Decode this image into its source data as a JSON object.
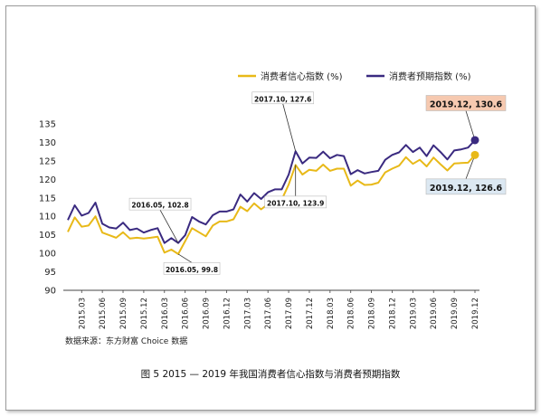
{
  "chart_data": {
    "type": "line",
    "title": "图 5 2015 — 2019 年我国消费者信心指数与消费者预期指数",
    "source": "数据来源：东方财富 Choice 数据",
    "xlabel": "",
    "ylabel": "",
    "ylim": [
      90,
      135
    ],
    "yticks": [
      90,
      95,
      100,
      105,
      110,
      115,
      120,
      125,
      130,
      135
    ],
    "grid": false,
    "legend_position": "top",
    "tick_labels": [
      "2015.03",
      "2015.06",
      "2015.09",
      "2015.12",
      "2016.03",
      "2016.06",
      "2016.09",
      "2016.12",
      "2017.03",
      "2017.06",
      "2017.09",
      "2017.12",
      "2018.03",
      "2018.06",
      "2018.09",
      "2018.12",
      "2019.03",
      "2019.06",
      "2019.09",
      "2019.12"
    ],
    "x_start": "2015.01",
    "x_end": "2019.12",
    "series": [
      {
        "name": "消费者信心指数 (%)",
        "color": "#e8b918",
        "values": [
          105.8,
          109.7,
          107.2,
          107.5,
          110.0,
          105.6,
          104.9,
          104.2,
          105.7,
          104.0,
          104.2,
          104.0,
          104.2,
          104.5,
          100.2,
          101.0,
          99.8,
          103.3,
          106.8,
          105.7,
          104.6,
          107.5,
          108.6,
          108.6,
          109.2,
          112.6,
          111.4,
          113.5,
          111.9,
          113.3,
          114.6,
          114.5,
          118.6,
          123.9,
          121.3,
          122.6,
          122.3,
          124.0,
          122.3,
          122.9,
          122.9,
          118.3,
          119.7,
          118.5,
          118.6,
          119.1,
          121.9,
          122.9,
          123.7,
          126.0,
          124.2,
          125.3,
          123.5,
          125.9,
          124.1,
          122.4,
          124.3,
          124.4,
          124.5,
          126.6
        ]
      },
      {
        "name": "消费者预期指数 (%)",
        "color": "#3a2a80",
        "values": [
          109.0,
          113.0,
          110.2,
          110.9,
          113.7,
          108.0,
          107.0,
          106.7,
          108.3,
          106.3,
          106.7,
          105.6,
          106.3,
          106.8,
          102.8,
          104.1,
          102.8,
          104.9,
          109.8,
          108.6,
          107.8,
          110.3,
          111.3,
          111.3,
          111.9,
          115.9,
          114.0,
          116.3,
          114.7,
          116.5,
          117.3,
          117.3,
          121.3,
          127.6,
          124.3,
          125.9,
          125.8,
          127.5,
          125.7,
          126.6,
          126.3,
          121.4,
          122.5,
          121.6,
          122.0,
          122.3,
          125.3,
          126.6,
          127.3,
          129.3,
          127.4,
          128.6,
          126.3,
          129.2,
          127.4,
          125.4,
          127.8,
          128.1,
          128.6,
          130.6
        ]
      }
    ],
    "annotations": [
      {
        "text": "2017.10, 127.6",
        "x": "2017.10",
        "y": 127.6,
        "series": 1
      },
      {
        "text": "2017.10, 123.9",
        "x": "2017.10",
        "y": 123.9,
        "series": 0
      },
      {
        "text": "2016.05, 102.8",
        "x": "2016.05",
        "y": 102.8,
        "series": 1
      },
      {
        "text": "2016.05, 99.8",
        "x": "2016.05",
        "y": 99.8,
        "series": 0
      },
      {
        "text": "2019.12, 130.6",
        "x": "2019.12",
        "y": 130.6,
        "series": 1,
        "highlight": "#f6c9b0"
      },
      {
        "text": "2019.12, 126.6",
        "x": "2019.12",
        "y": 126.6,
        "series": 0,
        "highlight": "#dce8f2"
      }
    ]
  }
}
